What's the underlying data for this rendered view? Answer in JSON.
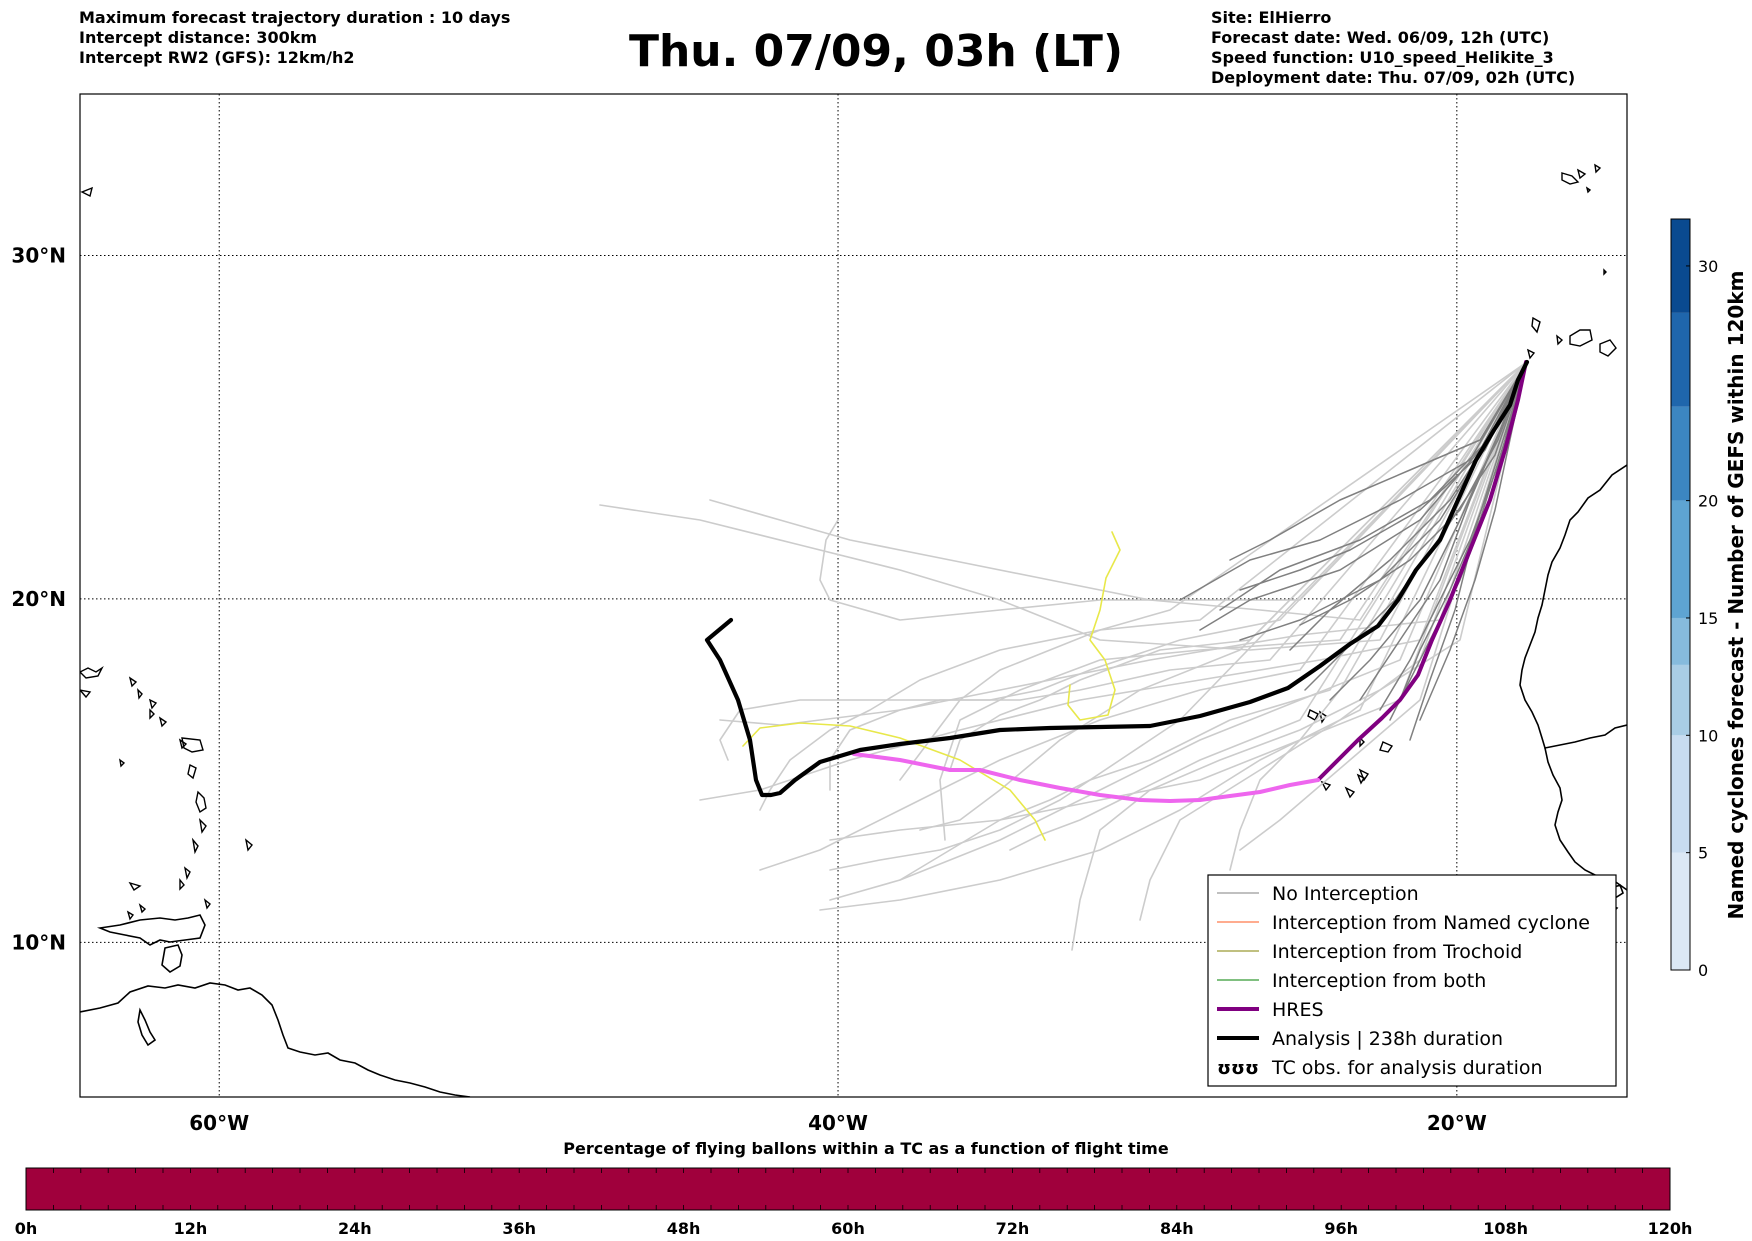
{
  "header": {
    "title": "Thu. 07/09, 03h (LT)",
    "left_lines": [
      "Maximum forecast trajectory duration : 10 days",
      "Intercept distance: 300km",
      "Intercept RW2 (GFS):  12km/h2"
    ],
    "right_lines": [
      "Site: ElHierro",
      "Forecast date: Wed. 06/09, 12h (UTC)",
      "Speed function: U10_speed_Helikite_3",
      "Deployment date: Thu. 07/09, 02h (UTC)"
    ]
  },
  "map": {
    "lon_range": [
      -64.5,
      -14.5
    ],
    "lat_range": [
      5.5,
      34.7
    ],
    "lat_ticks": [
      {
        "value": 30,
        "label": "30°N"
      },
      {
        "value": 20,
        "label": "20°N"
      },
      {
        "value": 10,
        "label": "10°N"
      }
    ],
    "lon_ticks": [
      {
        "value": -60,
        "label": "60°W"
      },
      {
        "value": -40,
        "label": "40°W"
      },
      {
        "value": -20,
        "label": "20°W"
      }
    ],
    "grid": true,
    "colors": {
      "no_interception": "#808080",
      "light_ensemble": "#cccccc",
      "named_cyclone": "#ff5a1f",
      "trochoid": "#808000",
      "both": "#008000",
      "hres": "#800080",
      "hres_extension": "#ee66ee",
      "analysis": "#000000",
      "tc_observation": "#e8e84a"
    }
  },
  "legend": {
    "items": [
      {
        "label": "No Interception",
        "color": "#808080",
        "width": 1
      },
      {
        "label": "Interception from Named cyclone",
        "color": "#ff5a1f",
        "width": 1
      },
      {
        "label": "Interception from Trochoid",
        "color": "#808000",
        "width": 1
      },
      {
        "label": "Interception from both",
        "color": "#008000",
        "width": 1
      },
      {
        "label": "HRES",
        "color": "#800080",
        "width": 4
      },
      {
        "label": "Analysis | 238h duration",
        "color": "#000000",
        "width": 4
      },
      {
        "label": "TC obs. for analysis duration",
        "symbol": "ʊʊʊ"
      }
    ]
  },
  "right_colorbar": {
    "label": "Named cyclones forecast - Number of GEFS within 120km",
    "range": [
      0,
      32
    ],
    "ticks": [
      "0",
      "5",
      "10",
      "15",
      "20",
      "30"
    ],
    "tick_values": [
      0,
      5,
      10,
      15,
      20,
      30
    ],
    "colors": [
      "#dbe8f5",
      "#c8dcf0",
      "#a9cde5",
      "#86bbdd",
      "#5ea4d2",
      "#3c86c1",
      "#1f66ac",
      "#0a4a90"
    ]
  },
  "bottom_colorbar": {
    "title": "Percentage of flying ballons within a TC as a function of flight time",
    "ticks": [
      "0h",
      "12h",
      "24h",
      "36h",
      "48h",
      "60h",
      "72h",
      "84h",
      "96h",
      "108h",
      "120h"
    ],
    "color": "#a0003c"
  }
}
